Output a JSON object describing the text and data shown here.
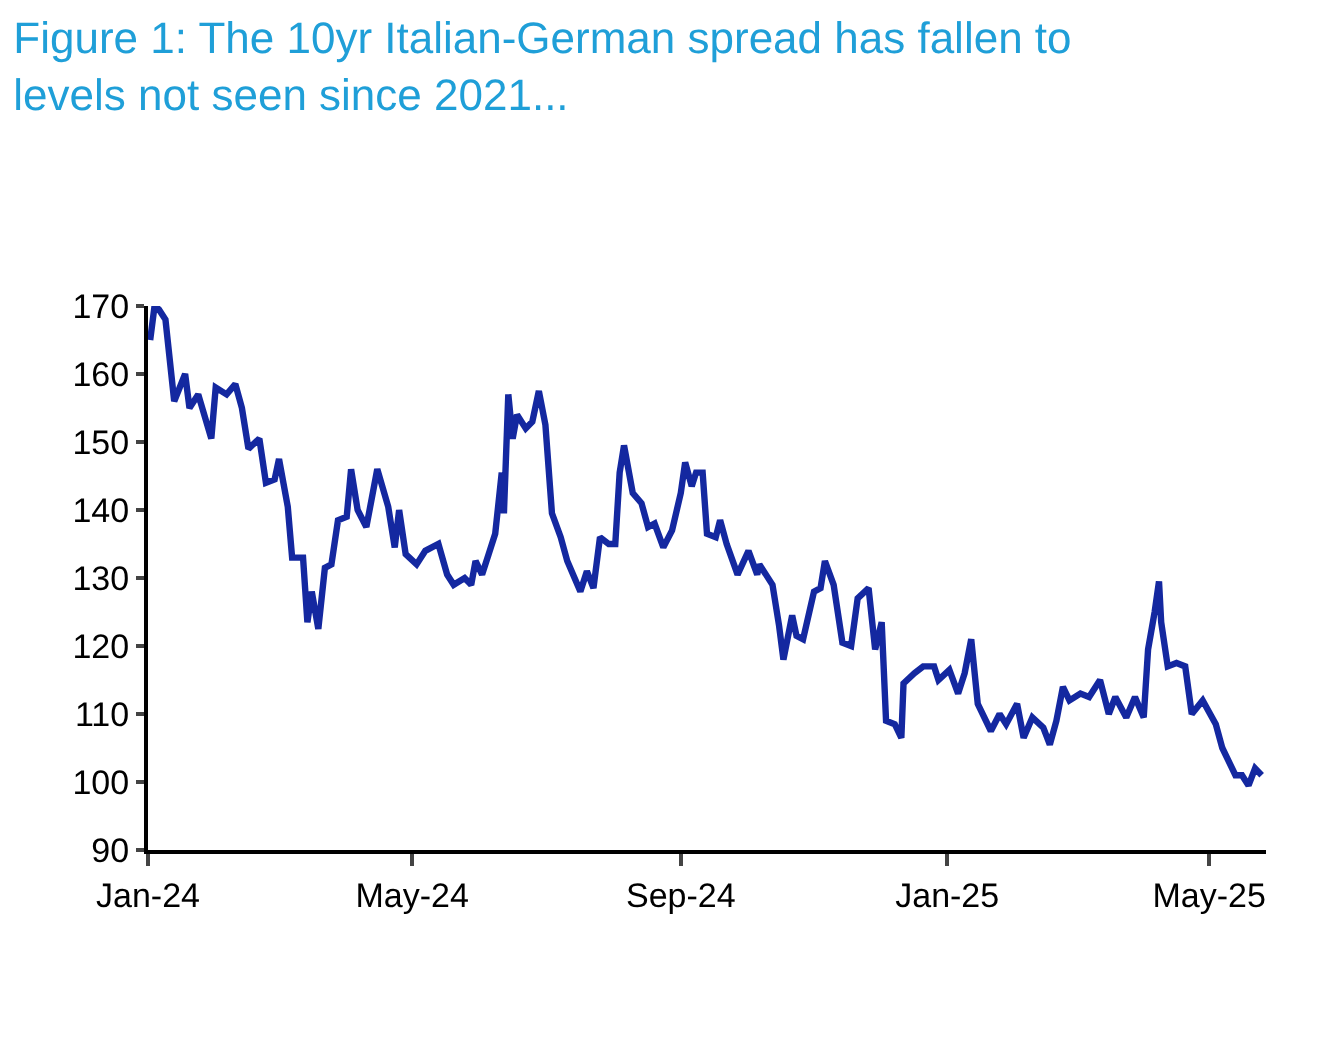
{
  "chart_data": {
    "type": "line",
    "title": "Figure 1: The 10yr Italian-German spread has fallen to levels not seen since 2021...",
    "x": [
      "2024-01-02",
      "2024-01-04",
      "2024-01-06",
      "2024-01-09",
      "2024-01-13",
      "2024-01-18",
      "2024-01-20",
      "2024-01-24",
      "2024-01-30",
      "2024-02-01",
      "2024-02-06",
      "2024-02-10",
      "2024-02-13",
      "2024-02-16",
      "2024-02-21",
      "2024-02-24",
      "2024-02-28",
      "2024-03-01",
      "2024-03-05",
      "2024-03-07",
      "2024-03-12",
      "2024-03-14",
      "2024-03-16",
      "2024-03-19",
      "2024-03-22",
      "2024-03-25",
      "2024-03-28",
      "2024-04-01",
      "2024-04-03",
      "2024-04-06",
      "2024-04-10",
      "2024-04-15",
      "2024-04-20",
      "2024-04-23",
      "2024-04-25",
      "2024-04-28",
      "2024-05-03",
      "2024-05-07",
      "2024-05-13",
      "2024-05-17",
      "2024-05-20",
      "2024-05-25",
      "2024-05-28",
      "2024-05-30",
      "2024-06-02",
      "2024-06-05",
      "2024-06-08",
      "2024-06-11",
      "2024-06-12",
      "2024-06-14",
      "2024-06-16",
      "2024-06-18",
      "2024-06-22",
      "2024-06-25",
      "2024-06-28",
      "2024-07-01",
      "2024-07-04",
      "2024-07-08",
      "2024-07-11",
      "2024-07-17",
      "2024-07-20",
      "2024-07-23",
      "2024-07-26",
      "2024-07-30",
      "2024-08-02",
      "2024-08-04",
      "2024-08-06",
      "2024-08-10",
      "2024-08-14",
      "2024-08-17",
      "2024-08-20",
      "2024-08-24",
      "2024-08-28",
      "2024-09-01",
      "2024-09-03",
      "2024-09-06",
      "2024-09-08",
      "2024-09-11",
      "2024-09-13",
      "2024-09-17",
      "2024-09-19",
      "2024-09-22",
      "2024-09-27",
      "2024-10-02",
      "2024-10-06",
      "2024-10-07",
      "2024-10-13",
      "2024-10-16",
      "2024-10-18",
      "2024-10-22",
      "2024-10-24",
      "2024-10-27",
      "2024-11-01",
      "2024-11-04",
      "2024-11-06",
      "2024-11-10",
      "2024-11-14",
      "2024-11-18",
      "2024-11-21",
      "2024-11-26",
      "2024-11-29",
      "2024-12-02",
      "2024-12-04",
      "2024-12-08",
      "2024-12-11",
      "2024-12-12",
      "2024-12-17",
      "2024-12-21",
      "2024-12-26",
      "2024-12-28",
      "2025-01-02",
      "2025-01-06",
      "2025-01-09",
      "2025-01-12",
      "2025-01-15",
      "2025-01-21",
      "2025-01-25",
      "2025-01-28",
      "2025-02-02",
      "2025-02-05",
      "2025-02-09",
      "2025-02-14",
      "2025-02-17",
      "2025-02-20",
      "2025-02-23",
      "2025-02-26",
      "2025-03-03",
      "2025-03-07",
      "2025-03-12",
      "2025-03-16",
      "2025-03-19",
      "2025-03-24",
      "2025-03-28",
      "2025-04-01",
      "2025-04-03",
      "2025-04-06",
      "2025-04-08",
      "2025-04-09",
      "2025-04-12",
      "2025-04-16",
      "2025-04-20",
      "2025-04-23",
      "2025-04-28",
      "2025-05-04",
      "2025-05-07",
      "2025-05-13",
      "2025-05-16",
      "2025-05-19",
      "2025-05-22",
      "2025-05-25"
    ],
    "series": [
      {
        "color": "#1428a0",
        "values": [
          165,
          170,
          169.5,
          168,
          156,
          160,
          155,
          157,
          150.5,
          158,
          157,
          158.5,
          155,
          149,
          150.5,
          144,
          144.5,
          147.5,
          140.5,
          133,
          133,
          123.5,
          128,
          122.5,
          131.5,
          132,
          138.5,
          139,
          146,
          140,
          137.5,
          146,
          140.5,
          134.5,
          140,
          133.5,
          132,
          134,
          135,
          130.5,
          129,
          130,
          129,
          132.5,
          130.5,
          133.5,
          136.5,
          145.5,
          139.5,
          157,
          150.5,
          154,
          152,
          153,
          157.5,
          152.5,
          139.5,
          136,
          132.5,
          128,
          131,
          128.5,
          136,
          135,
          135,
          145.5,
          149.5,
          142.5,
          141,
          137.5,
          138,
          134.5,
          137,
          142.5,
          147,
          143.5,
          145.5,
          145.5,
          136.5,
          136,
          138.5,
          135,
          130.5,
          134,
          130.5,
          132,
          129,
          123,
          118,
          124.5,
          121.5,
          121,
          128,
          128.5,
          132.5,
          129,
          120.5,
          120,
          127,
          128.5,
          119.5,
          123.5,
          109,
          108.5,
          106.5,
          114.5,
          116,
          117,
          117,
          115,
          116.5,
          113,
          116,
          121,
          111.5,
          107.5,
          110,
          108.5,
          111.5,
          106.5,
          109.5,
          108,
          105.5,
          109,
          114,
          112,
          113,
          112.5,
          115,
          110,
          112.5,
          109.5,
          112.5,
          109.5,
          119.5,
          125,
          129.5,
          123.5,
          117,
          117.5,
          117,
          110,
          112,
          108.5,
          105,
          101,
          101,
          99.5,
          102,
          101
        ]
      }
    ],
    "xlim": [
      "2024-01-01",
      "2025-05-27"
    ],
    "xticks": [
      {
        "value": "2024-01-01",
        "label": "Jan-24"
      },
      {
        "value": "2024-05-01",
        "label": "May-24"
      },
      {
        "value": "2024-09-01",
        "label": "Sep-24"
      },
      {
        "value": "2025-01-01",
        "label": "Jan-25"
      },
      {
        "value": "2025-05-01",
        "label": "May-25"
      }
    ],
    "ylim": [
      90,
      170
    ],
    "yticks": [
      90,
      100,
      110,
      120,
      130,
      140,
      150,
      160,
      170
    ],
    "grid": false
  }
}
